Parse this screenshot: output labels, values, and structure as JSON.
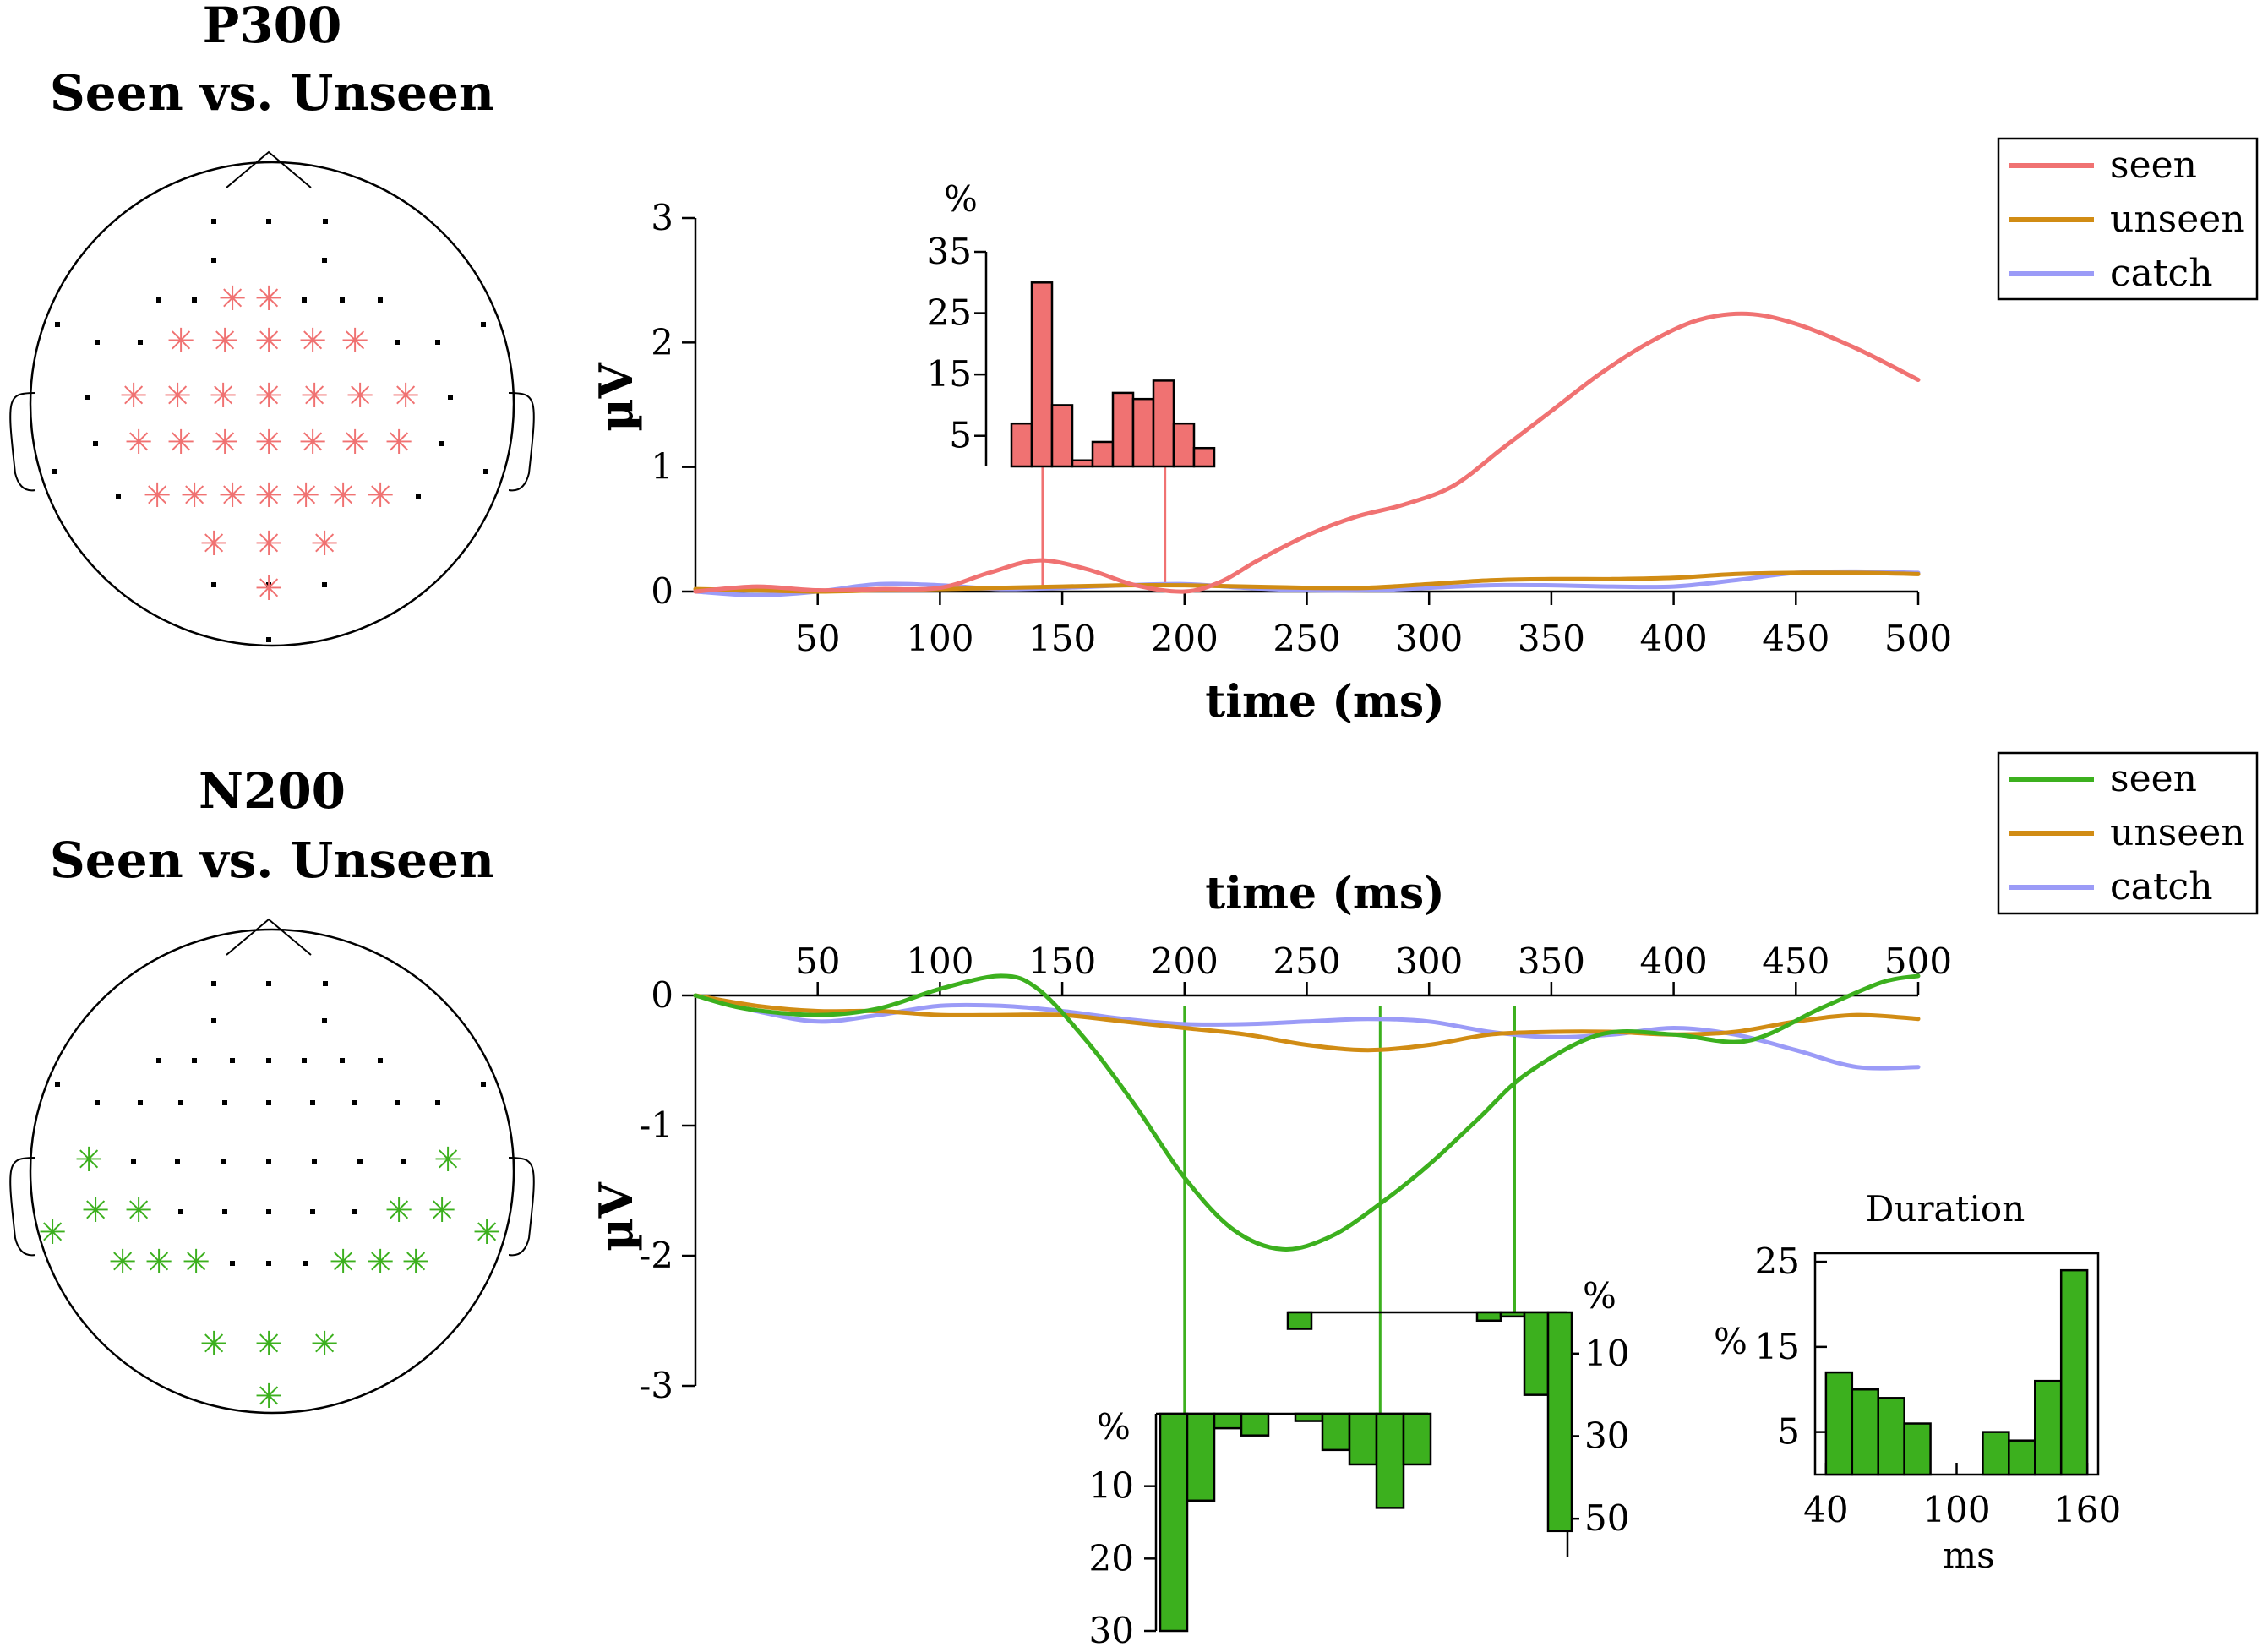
{
  "colors": {
    "p300_seen": "#f07272",
    "n200_seen": "#3cb01e",
    "unseen": "#d18c14",
    "catch": "#9b9bf7",
    "sensor_dot": "#000000"
  },
  "panels": {
    "p300": {
      "title_line1": "P300",
      "title_line2": "Seen vs. Unseen"
    },
    "n200": {
      "title_line1": "N200",
      "title_line2": "Seen vs. Unseen"
    }
  },
  "chart_data": [
    {
      "id": "p300_erp",
      "type": "line",
      "xlabel": "time (ms)",
      "ylabel": "µV",
      "xlim": [
        0,
        500
      ],
      "ylim": [
        0,
        3
      ],
      "xticks": [
        "50",
        "100",
        "150",
        "200",
        "250",
        "300",
        "350",
        "400",
        "450",
        "500"
      ],
      "yticks": [
        "0",
        "1",
        "2",
        "3"
      ],
      "legend": {
        "position": "top-right",
        "entries": [
          "seen",
          "unseen",
          "catch"
        ]
      },
      "series": [
        {
          "name": "seen",
          "color": "#f07272",
          "x": [
            0,
            25,
            50,
            75,
            100,
            120,
            140,
            160,
            180,
            200,
            215,
            230,
            250,
            270,
            290,
            310,
            330,
            350,
            370,
            390,
            410,
            430,
            450,
            475,
            500
          ],
          "y": [
            0,
            0.04,
            0.01,
            0.02,
            0.03,
            0.15,
            0.25,
            0.18,
            0.05,
            0,
            0.08,
            0.25,
            0.45,
            0.6,
            0.7,
            0.85,
            1.15,
            1.45,
            1.75,
            2.0,
            2.18,
            2.23,
            2.15,
            1.95,
            1.7
          ]
        },
        {
          "name": "unseen",
          "color": "#d18c14",
          "x": [
            0,
            25,
            50,
            75,
            100,
            125,
            150,
            175,
            200,
            225,
            250,
            275,
            300,
            325,
            350,
            375,
            400,
            425,
            450,
            475,
            500
          ],
          "y": [
            0.02,
            0.01,
            0.0,
            0.01,
            0.02,
            0.03,
            0.04,
            0.05,
            0.05,
            0.04,
            0.03,
            0.03,
            0.06,
            0.09,
            0.1,
            0.1,
            0.11,
            0.14,
            0.15,
            0.15,
            0.14
          ]
        },
        {
          "name": "catch",
          "color": "#9b9bf7",
          "x": [
            0,
            25,
            50,
            75,
            100,
            125,
            150,
            175,
            200,
            225,
            250,
            275,
            300,
            325,
            350,
            375,
            400,
            425,
            450,
            475,
            500
          ],
          "y": [
            0.0,
            -0.03,
            0.0,
            0.06,
            0.05,
            0.02,
            0.03,
            0.05,
            0.06,
            0.03,
            0.01,
            0.01,
            0.03,
            0.05,
            0.05,
            0.04,
            0.04,
            0.09,
            0.15,
            0.16,
            0.15
          ]
        }
      ],
      "markers_ms": [
        142,
        192
      ]
    },
    {
      "id": "p300_hist",
      "type": "bar",
      "ylabel": "%",
      "yticks": [
        "5",
        "15",
        "25",
        "35"
      ],
      "ylim": [
        0,
        35
      ],
      "values": [
        7,
        30,
        10,
        1,
        4,
        12,
        11,
        14,
        7,
        3
      ]
    },
    {
      "id": "n200_erp",
      "type": "line",
      "xlabel": "time (ms)",
      "ylabel": "µV",
      "xlim": [
        0,
        500
      ],
      "ylim": [
        -3,
        0
      ],
      "xticks": [
        "50",
        "100",
        "150",
        "200",
        "250",
        "300",
        "350",
        "400",
        "450",
        "500"
      ],
      "yticks": [
        "0",
        "-1",
        "-2",
        "-3"
      ],
      "legend": {
        "position": "top-right",
        "entries": [
          "seen",
          "unseen",
          "catch"
        ]
      },
      "series": [
        {
          "name": "seen",
          "color": "#3cb01e",
          "x": [
            0,
            20,
            50,
            75,
            100,
            125,
            140,
            160,
            180,
            200,
            220,
            240,
            260,
            280,
            300,
            320,
            340,
            370,
            400,
            430,
            460,
            485,
            500
          ],
          "y": [
            0,
            -0.1,
            -0.15,
            -0.1,
            0.05,
            0.15,
            0.05,
            -0.35,
            -0.85,
            -1.4,
            -1.8,
            -1.95,
            -1.85,
            -1.6,
            -1.3,
            -0.95,
            -0.6,
            -0.3,
            -0.3,
            -0.35,
            -0.1,
            0.1,
            0.15
          ]
        },
        {
          "name": "unseen",
          "color": "#d18c14",
          "x": [
            0,
            25,
            50,
            75,
            100,
            125,
            150,
            175,
            200,
            225,
            250,
            275,
            300,
            325,
            350,
            375,
            400,
            425,
            450,
            475,
            500
          ],
          "y": [
            0,
            -0.08,
            -0.12,
            -0.12,
            -0.15,
            -0.15,
            -0.15,
            -0.2,
            -0.25,
            -0.3,
            -0.38,
            -0.42,
            -0.38,
            -0.3,
            -0.28,
            -0.28,
            -0.3,
            -0.28,
            -0.2,
            -0.15,
            -0.18
          ]
        },
        {
          "name": "catch",
          "color": "#9b9bf7",
          "x": [
            0,
            25,
            50,
            75,
            100,
            125,
            150,
            175,
            200,
            225,
            250,
            275,
            300,
            325,
            350,
            375,
            400,
            425,
            450,
            475,
            500
          ],
          "y": [
            0,
            -0.12,
            -0.2,
            -0.15,
            -0.08,
            -0.08,
            -0.12,
            -0.18,
            -0.22,
            -0.22,
            -0.2,
            -0.18,
            -0.2,
            -0.28,
            -0.32,
            -0.3,
            -0.25,
            -0.3,
            -0.42,
            -0.55,
            -0.55
          ]
        }
      ],
      "markers_ms": [
        200,
        280,
        335
      ]
    },
    {
      "id": "n200_hist_left",
      "type": "bar",
      "orientation": "downward",
      "ylabel": "%",
      "yticks": [
        "10",
        "20",
        "30"
      ],
      "ylim": [
        0,
        30
      ],
      "values": [
        30,
        12,
        2,
        3,
        0,
        1,
        5,
        7,
        13,
        7
      ]
    },
    {
      "id": "n200_hist_right",
      "type": "bar",
      "orientation": "downward",
      "ylabel": "%",
      "yticks": [
        "10",
        "30",
        "50"
      ],
      "ylim": [
        0,
        60
      ],
      "values": [
        4,
        0,
        0,
        0,
        0,
        0,
        0,
        0,
        2,
        1,
        20,
        53
      ]
    },
    {
      "id": "duration_hist",
      "type": "bar",
      "title": "Duration",
      "xlabel": "ms",
      "ylabel": "%",
      "xticks": [
        "40",
        "100",
        "160"
      ],
      "yticks": [
        "5",
        "15",
        "25"
      ],
      "xlim": [
        35,
        165
      ],
      "ylim": [
        0,
        26
      ],
      "bins": [
        [
          40,
          52
        ],
        [
          52,
          64
        ],
        [
          64,
          76
        ],
        [
          76,
          88
        ],
        [
          112,
          124
        ],
        [
          124,
          136
        ],
        [
          136,
          148
        ],
        [
          148,
          160
        ]
      ],
      "values": [
        12,
        10,
        9,
        6,
        5,
        4,
        11,
        24
      ]
    }
  ]
}
